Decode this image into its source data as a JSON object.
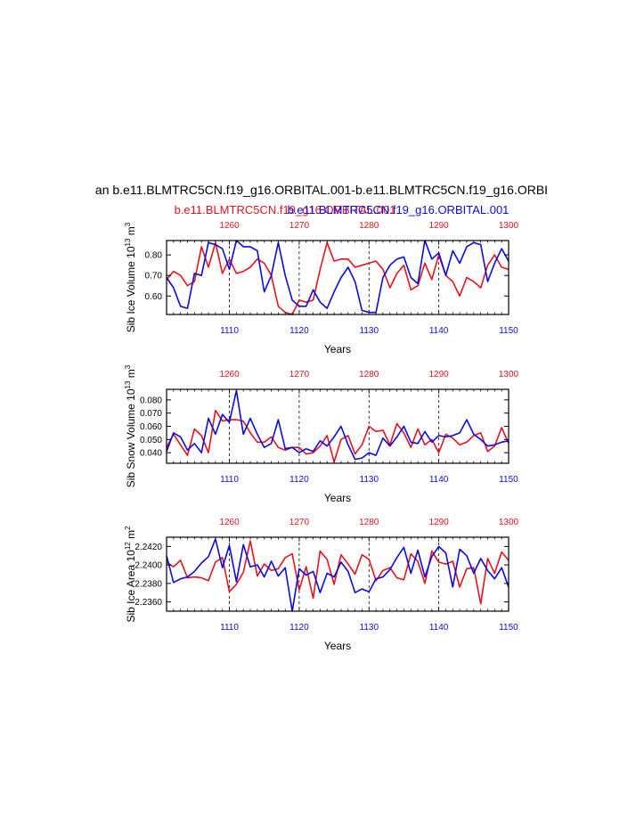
{
  "figure": {
    "title": "an b.e11.BLMTRC5CN.f19_g16.ORBITAL.001-b.e11.BLMTRC5CN.f19_g16.ORBI",
    "legend_red": "b.e11.BLMTRC5CN.f19_g16.ORBITAL.001",
    "legend_blue": "b.e11.BLMTRC5CN.f19_g16.ORBITAL.001",
    "colors": {
      "red": "#e8121b",
      "blue": "#0a0ae6"
    }
  },
  "chart_data": [
    {
      "type": "line",
      "ylabel": "Sib Ice Volume 10",
      "ylabel_exp": "13",
      "ylabel_unit": " m",
      "ylabel_unit_exp": "3",
      "xlabel": "Years",
      "xlim_bottom": [
        1101,
        1150
      ],
      "xlim_top": [
        1251,
        1300
      ],
      "ylim": [
        0.51,
        0.87
      ],
      "yticks": [
        0.6,
        0.7,
        0.8
      ],
      "ytick_labels": [
        "0.60",
        "0.70",
        "0.80"
      ],
      "xticks_bottom": [
        1110,
        1120,
        1130,
        1140,
        1150
      ],
      "xticks_top": [
        1260,
        1270,
        1280,
        1290,
        1300
      ],
      "grid_x": [
        1110,
        1120,
        1130,
        1140
      ],
      "series": [
        {
          "name": "red",
          "color": "#e8121b",
          "x": [
            1101,
            1102,
            1103,
            1104,
            1105,
            1106,
            1107,
            1108,
            1109,
            1110,
            1111,
            1112,
            1113,
            1114,
            1115,
            1116,
            1117,
            1118,
            1119,
            1120,
            1121,
            1122,
            1123,
            1124,
            1125,
            1126,
            1127,
            1128,
            1129,
            1130,
            1131,
            1132,
            1133,
            1134,
            1135,
            1136,
            1137,
            1138,
            1139,
            1140,
            1141,
            1142,
            1143,
            1144,
            1145,
            1146,
            1147,
            1148,
            1149,
            1150
          ],
          "values": [
            0.68,
            0.72,
            0.7,
            0.65,
            0.67,
            0.84,
            0.74,
            0.86,
            0.71,
            0.78,
            0.71,
            0.72,
            0.74,
            0.78,
            0.76,
            0.7,
            0.55,
            0.52,
            0.51,
            0.58,
            0.57,
            0.58,
            0.73,
            0.86,
            0.77,
            0.78,
            0.78,
            0.74,
            0.75,
            0.76,
            0.77,
            0.73,
            0.64,
            0.71,
            0.75,
            0.63,
            0.65,
            0.76,
            0.68,
            0.8,
            0.7,
            0.67,
            0.6,
            0.69,
            0.67,
            0.64,
            0.75,
            0.8,
            0.74,
            0.73
          ]
        },
        {
          "name": "blue",
          "color": "#0a0ae6",
          "x": [
            1101,
            1102,
            1103,
            1104,
            1105,
            1106,
            1107,
            1108,
            1109,
            1110,
            1111,
            1112,
            1113,
            1114,
            1115,
            1116,
            1117,
            1118,
            1119,
            1120,
            1121,
            1122,
            1123,
            1124,
            1125,
            1126,
            1127,
            1128,
            1129,
            1130,
            1131,
            1132,
            1133,
            1134,
            1135,
            1136,
            1137,
            1138,
            1139,
            1140,
            1141,
            1142,
            1143,
            1144,
            1145,
            1146,
            1147,
            1148,
            1149,
            1150
          ],
          "values": [
            0.69,
            0.64,
            0.55,
            0.54,
            0.71,
            0.7,
            0.86,
            0.85,
            0.83,
            0.73,
            0.87,
            0.84,
            0.84,
            0.82,
            0.62,
            0.7,
            0.86,
            0.7,
            0.58,
            0.55,
            0.55,
            0.63,
            0.57,
            0.54,
            0.62,
            0.69,
            0.74,
            0.67,
            0.53,
            0.52,
            0.52,
            0.69,
            0.75,
            0.78,
            0.79,
            0.69,
            0.66,
            0.87,
            0.78,
            0.81,
            0.7,
            0.82,
            0.76,
            0.84,
            0.86,
            0.85,
            0.67,
            0.76,
            0.83,
            0.77
          ]
        }
      ]
    },
    {
      "type": "line",
      "ylabel": "Sib Snow Volume 10",
      "ylabel_exp": "13",
      "ylabel_unit": " m",
      "ylabel_unit_exp": "3",
      "xlabel": "Years",
      "xlim_bottom": [
        1101,
        1150
      ],
      "xlim_top": [
        1251,
        1300
      ],
      "ylim": [
        0.032,
        0.088
      ],
      "yticks": [
        0.04,
        0.05,
        0.06,
        0.07,
        0.08
      ],
      "ytick_labels": [
        "0.040",
        "0.050",
        "0.060",
        "0.070",
        "0.080"
      ],
      "xticks_bottom": [
        1110,
        1120,
        1130,
        1140,
        1150
      ],
      "xticks_top": [
        1260,
        1270,
        1280,
        1290,
        1300
      ],
      "grid_x": [
        1110,
        1120,
        1130,
        1140
      ],
      "series": [
        {
          "name": "red",
          "color": "#e8121b",
          "x": [
            1101,
            1102,
            1103,
            1104,
            1105,
            1106,
            1107,
            1108,
            1109,
            1110,
            1111,
            1112,
            1113,
            1114,
            1115,
            1116,
            1117,
            1118,
            1119,
            1120,
            1121,
            1122,
            1123,
            1124,
            1125,
            1126,
            1127,
            1128,
            1129,
            1130,
            1131,
            1132,
            1133,
            1134,
            1135,
            1136,
            1137,
            1138,
            1139,
            1140,
            1141,
            1142,
            1143,
            1144,
            1145,
            1146,
            1147,
            1148,
            1149,
            1150
          ],
          "values": [
            0.044,
            0.054,
            0.046,
            0.038,
            0.058,
            0.053,
            0.04,
            0.072,
            0.064,
            0.065,
            0.065,
            0.064,
            0.055,
            0.048,
            0.048,
            0.052,
            0.044,
            0.042,
            0.044,
            0.044,
            0.039,
            0.04,
            0.045,
            0.053,
            0.033,
            0.05,
            0.053,
            0.039,
            0.046,
            0.06,
            0.056,
            0.057,
            0.046,
            0.062,
            0.055,
            0.044,
            0.058,
            0.046,
            0.05,
            0.04,
            0.054,
            0.051,
            0.046,
            0.048,
            0.053,
            0.055,
            0.041,
            0.045,
            0.059,
            0.047
          ]
        },
        {
          "name": "blue",
          "color": "#0a0ae6",
          "x": [
            1101,
            1102,
            1103,
            1104,
            1105,
            1106,
            1107,
            1108,
            1109,
            1110,
            1111,
            1112,
            1113,
            1114,
            1115,
            1116,
            1117,
            1118,
            1119,
            1120,
            1121,
            1122,
            1123,
            1124,
            1125,
            1126,
            1127,
            1128,
            1129,
            1130,
            1131,
            1132,
            1133,
            1134,
            1135,
            1136,
            1137,
            1138,
            1139,
            1140,
            1141,
            1142,
            1143,
            1144,
            1145,
            1146,
            1147,
            1148,
            1149,
            1150
          ],
          "values": [
            0.041,
            0.055,
            0.052,
            0.042,
            0.047,
            0.04,
            0.066,
            0.054,
            0.069,
            0.063,
            0.087,
            0.054,
            0.066,
            0.054,
            0.044,
            0.047,
            0.065,
            0.043,
            0.044,
            0.04,
            0.043,
            0.041,
            0.049,
            0.045,
            0.052,
            0.06,
            0.046,
            0.035,
            0.036,
            0.04,
            0.038,
            0.051,
            0.045,
            0.052,
            0.06,
            0.048,
            0.047,
            0.056,
            0.048,
            0.053,
            0.052,
            0.053,
            0.055,
            0.065,
            0.054,
            0.05,
            0.045,
            0.046,
            0.048,
            0.049
          ]
        }
      ]
    },
    {
      "type": "line",
      "ylabel": "Sib Ice Area 10",
      "ylabel_exp": "12",
      "ylabel_unit": " m",
      "ylabel_unit_exp": "2",
      "xlabel": "Years",
      "xlim_bottom": [
        1101,
        1150
      ],
      "xlim_top": [
        1251,
        1300
      ],
      "ylim": [
        2.235,
        2.243
      ],
      "yticks": [
        2.236,
        2.238,
        2.24,
        2.242
      ],
      "ytick_labels": [
        "2.2360",
        "2.2380",
        "2.2400",
        "2.2420"
      ],
      "xticks_bottom": [
        1110,
        1120,
        1130,
        1140,
        1150
      ],
      "xticks_top": [
        1260,
        1270,
        1280,
        1290,
        1300
      ],
      "grid_x": [
        1110,
        1120,
        1130,
        1140
      ],
      "series": [
        {
          "name": "red",
          "color": "#e8121b",
          "x": [
            1101,
            1102,
            1103,
            1104,
            1105,
            1106,
            1107,
            1108,
            1109,
            1110,
            1111,
            1112,
            1113,
            1114,
            1115,
            1116,
            1117,
            1118,
            1119,
            1120,
            1121,
            1122,
            1123,
            1124,
            1125,
            1126,
            1127,
            1128,
            1129,
            1130,
            1131,
            1132,
            1133,
            1134,
            1135,
            1136,
            1137,
            1138,
            1139,
            1140,
            1141,
            1142,
            1143,
            1144,
            1145,
            1146,
            1147,
            1148,
            1149,
            1150
          ],
          "values": [
            2.2403,
            2.2398,
            2.2405,
            2.2386,
            2.2387,
            2.2386,
            2.2383,
            2.2403,
            2.2408,
            2.2371,
            2.2379,
            2.2392,
            2.2426,
            2.2388,
            2.2401,
            2.2394,
            2.2396,
            2.2408,
            2.2412,
            2.2373,
            2.2398,
            2.2364,
            2.2415,
            2.2406,
            2.2379,
            2.2411,
            2.2401,
            2.239,
            2.2411,
            2.2406,
            2.2383,
            2.2394,
            2.2397,
            2.2386,
            2.2384,
            2.2412,
            2.2404,
            2.238,
            2.2415,
            2.2403,
            2.2401,
            2.2404,
            2.2376,
            2.2396,
            2.2397,
            2.2358,
            2.2407,
            2.2391,
            2.2414,
            2.2405
          ]
        },
        {
          "name": "blue",
          "color": "#0a0ae6",
          "x": [
            1101,
            1102,
            1103,
            1104,
            1105,
            1106,
            1107,
            1108,
            1109,
            1110,
            1111,
            1112,
            1113,
            1114,
            1115,
            1116,
            1117,
            1118,
            1119,
            1120,
            1121,
            1122,
            1123,
            1124,
            1125,
            1126,
            1127,
            1128,
            1129,
            1130,
            1131,
            1132,
            1133,
            1134,
            1135,
            1136,
            1137,
            1138,
            1139,
            1140,
            1141,
            1142,
            1143,
            1144,
            1145,
            1146,
            1147,
            1148,
            1149,
            1150
          ],
          "values": [
            2.241,
            2.2381,
            2.2385,
            2.2387,
            2.2393,
            2.2402,
            2.2409,
            2.2428,
            2.2397,
            2.2421,
            2.2382,
            2.2422,
            2.2398,
            2.24,
            2.2387,
            2.2404,
            2.2388,
            2.2397,
            2.235,
            2.2396,
            2.2389,
            2.2393,
            2.237,
            2.2391,
            2.2387,
            2.2403,
            2.2393,
            2.237,
            2.2374,
            2.2371,
            2.2385,
            2.2387,
            2.2395,
            2.2408,
            2.2419,
            2.2391,
            2.2416,
            2.2387,
            2.2409,
            2.242,
            2.2413,
            2.2376,
            2.2417,
            2.241,
            2.2391,
            2.2407,
            2.2394,
            2.2385,
            2.2397,
            2.2376
          ]
        }
      ]
    }
  ]
}
